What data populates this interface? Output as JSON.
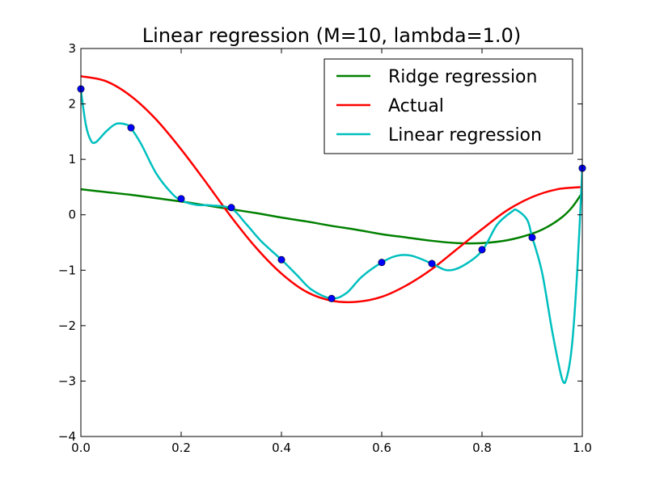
{
  "chart_data": {
    "type": "line",
    "title": "Linear regression (M=10, lambda=1.0)",
    "xlabel": "",
    "ylabel": "",
    "xlim": [
      0.0,
      1.0
    ],
    "ylim": [
      -4,
      3
    ],
    "x_ticks": [
      "0.0",
      "0.2",
      "0.4",
      "0.6",
      "0.8",
      "1.0"
    ],
    "y_ticks": [
      "−4",
      "−3",
      "−2",
      "−1",
      "0",
      "1",
      "2",
      "3"
    ],
    "grid": false,
    "legend_position": "top-right",
    "series": [
      {
        "name": "Ridge regression",
        "color": "#008000",
        "x": [
          0.0,
          0.05,
          0.1,
          0.15,
          0.2,
          0.25,
          0.3,
          0.35,
          0.4,
          0.45,
          0.5,
          0.55,
          0.6,
          0.65,
          0.7,
          0.75,
          0.8,
          0.85,
          0.9,
          0.93,
          0.96,
          0.98,
          1.0
        ],
        "y": [
          0.46,
          0.41,
          0.36,
          0.3,
          0.24,
          0.17,
          0.1,
          0.03,
          -0.05,
          -0.12,
          -0.2,
          -0.27,
          -0.35,
          -0.41,
          -0.47,
          -0.51,
          -0.51,
          -0.46,
          -0.34,
          -0.22,
          -0.04,
          0.14,
          0.4
        ]
      },
      {
        "name": "Actual",
        "color": "#ff0000",
        "x": [
          0.0,
          0.05,
          0.1,
          0.15,
          0.2,
          0.25,
          0.3,
          0.35,
          0.4,
          0.45,
          0.5,
          0.55,
          0.6,
          0.65,
          0.7,
          0.75,
          0.8,
          0.85,
          0.9,
          0.95,
          1.0
        ],
        "y": [
          2.5,
          2.41,
          2.14,
          1.72,
          1.18,
          0.58,
          -0.04,
          -0.6,
          -1.06,
          -1.39,
          -1.55,
          -1.57,
          -1.48,
          -1.27,
          -0.98,
          -0.62,
          -0.26,
          0.08,
          0.32,
          0.46,
          0.5
        ]
      },
      {
        "name": "Linear regression",
        "color": "#00bfbf",
        "x": [
          0.0,
          0.01,
          0.02,
          0.03,
          0.05,
          0.07,
          0.09,
          0.1,
          0.12,
          0.15,
          0.18,
          0.2,
          0.23,
          0.26,
          0.3,
          0.33,
          0.36,
          0.4,
          0.43,
          0.46,
          0.5,
          0.53,
          0.56,
          0.6,
          0.63,
          0.66,
          0.7,
          0.73,
          0.76,
          0.8,
          0.83,
          0.86,
          0.87,
          0.89,
          0.9,
          0.92,
          0.94,
          0.96,
          0.97,
          0.98,
          0.99,
          1.0
        ],
        "y": [
          2.25,
          1.62,
          1.34,
          1.31,
          1.5,
          1.64,
          1.63,
          1.56,
          1.28,
          0.75,
          0.4,
          0.26,
          0.18,
          0.17,
          0.11,
          -0.17,
          -0.48,
          -0.81,
          -1.08,
          -1.35,
          -1.51,
          -1.41,
          -1.12,
          -0.86,
          -0.74,
          -0.74,
          -0.88,
          -1.0,
          -0.93,
          -0.65,
          -0.18,
          0.06,
          0.08,
          -0.09,
          -0.4,
          -1.05,
          -2.1,
          -2.97,
          -2.9,
          -2.3,
          -1.0,
          0.82
        ]
      }
    ],
    "points": {
      "color": "#0000ff",
      "x": [
        0.0,
        0.1,
        0.2,
        0.3,
        0.4,
        0.5,
        0.6,
        0.7,
        0.8,
        0.9,
        1.0
      ],
      "y": [
        2.27,
        1.57,
        0.29,
        0.13,
        -0.81,
        -1.51,
        -0.86,
        -0.88,
        -0.63,
        -0.41,
        0.84
      ]
    }
  }
}
